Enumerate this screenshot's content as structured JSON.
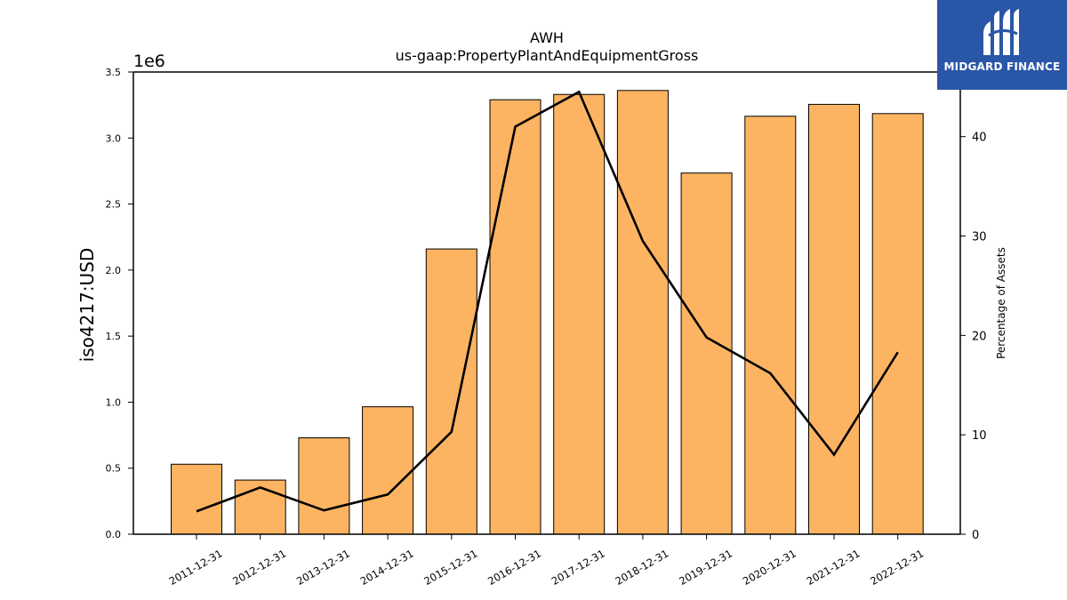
{
  "chart_data": {
    "type": "bar",
    "title": "AWH",
    "subtitle": "us-gaap:PropertyPlantAndEquipmentGross",
    "ylabel": "iso4217:USD",
    "y_offset_label": "1e6",
    "y2label": "Percentage of Assets",
    "categories": [
      "2011-12-31",
      "2012-12-31",
      "2013-12-31",
      "2014-12-31",
      "2015-12-31",
      "2016-12-31",
      "2017-12-31",
      "2018-12-31",
      "2019-12-31",
      "2020-12-31",
      "2021-12-31",
      "2022-12-31"
    ],
    "series": [
      {
        "type": "bar",
        "axis": "left",
        "color": "#fdb462",
        "values": [
          530000,
          410000,
          730000,
          965000,
          2160000,
          3290000,
          3330000,
          3360000,
          2735000,
          3165000,
          3255000,
          3185000
        ]
      },
      {
        "type": "line",
        "axis": "right",
        "color": "#000000",
        "values": [
          2.3,
          4.7,
          2.4,
          4.0,
          10.3,
          41.0,
          44.5,
          29.5,
          19.8,
          16.2,
          8.0,
          18.3
        ]
      }
    ],
    "ylim": [
      0,
      3.5
    ],
    "yticks": [
      "0.0",
      "0.5",
      "1.0",
      "1.5",
      "2.0",
      "2.5",
      "3.0",
      "3.5"
    ],
    "y2lim": [
      0,
      46.5
    ],
    "y2ticks": [
      "0",
      "10",
      "20",
      "30",
      "40"
    ],
    "grid": false
  },
  "logo": {
    "text": "MIDGARD FINANCE",
    "bg_color": "#2a56a8"
  }
}
